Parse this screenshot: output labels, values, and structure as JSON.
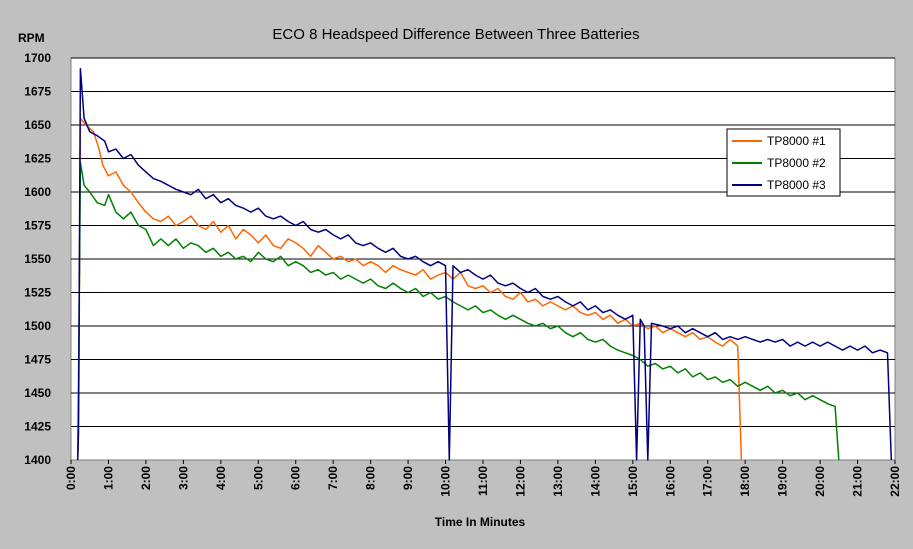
{
  "chart_data": {
    "type": "line",
    "title": "ECO 8 Headspeed Difference Between Three Batteries",
    "ylabel": "RPM",
    "xlabel": "Time In Minutes",
    "ylim": [
      1400,
      1700
    ],
    "xlim": [
      0,
      22
    ],
    "y_ticks": [
      1400,
      1425,
      1450,
      1475,
      1500,
      1525,
      1550,
      1575,
      1600,
      1625,
      1650,
      1675,
      1700
    ],
    "x_ticks": [
      "0:00",
      "1:00",
      "2:00",
      "3:00",
      "4:00",
      "5:00",
      "6:00",
      "7:00",
      "8:00",
      "9:00",
      "10:00",
      "11:00",
      "12:00",
      "13:00",
      "14:00",
      "15:00",
      "16:00",
      "17:00",
      "18:00",
      "19:00",
      "20:00",
      "21:00",
      "22:00"
    ],
    "grid": "horizontal",
    "legend_position": "right",
    "series": [
      {
        "name": "TP8000 #1",
        "color": "#ff6600",
        "points": [
          [
            0.18,
            1400
          ],
          [
            0.21,
            1462
          ],
          [
            0.25,
            1655
          ],
          [
            0.4,
            1650
          ],
          [
            0.6,
            1645
          ],
          [
            0.75,
            1632
          ],
          [
            0.85,
            1620
          ],
          [
            1.0,
            1612
          ],
          [
            1.2,
            1615
          ],
          [
            1.4,
            1605
          ],
          [
            1.6,
            1600
          ],
          [
            1.8,
            1592
          ],
          [
            2.0,
            1585
          ],
          [
            2.2,
            1580
          ],
          [
            2.4,
            1578
          ],
          [
            2.6,
            1582
          ],
          [
            2.8,
            1575
          ],
          [
            3.0,
            1578
          ],
          [
            3.2,
            1582
          ],
          [
            3.4,
            1575
          ],
          [
            3.6,
            1572
          ],
          [
            3.8,
            1578
          ],
          [
            4.0,
            1570
          ],
          [
            4.2,
            1575
          ],
          [
            4.4,
            1565
          ],
          [
            4.6,
            1572
          ],
          [
            4.8,
            1568
          ],
          [
            5.0,
            1562
          ],
          [
            5.2,
            1568
          ],
          [
            5.4,
            1560
          ],
          [
            5.6,
            1558
          ],
          [
            5.8,
            1565
          ],
          [
            6.0,
            1562
          ],
          [
            6.2,
            1558
          ],
          [
            6.4,
            1552
          ],
          [
            6.6,
            1560
          ],
          [
            6.8,
            1555
          ],
          [
            7.0,
            1550
          ],
          [
            7.2,
            1552
          ],
          [
            7.4,
            1548
          ],
          [
            7.6,
            1550
          ],
          [
            7.8,
            1545
          ],
          [
            8.0,
            1548
          ],
          [
            8.2,
            1545
          ],
          [
            8.4,
            1540
          ],
          [
            8.6,
            1545
          ],
          [
            8.8,
            1542
          ],
          [
            9.0,
            1540
          ],
          [
            9.2,
            1538
          ],
          [
            9.4,
            1542
          ],
          [
            9.6,
            1535
          ],
          [
            9.8,
            1538
          ],
          [
            10.0,
            1540
          ],
          [
            10.2,
            1535
          ],
          [
            10.4,
            1540
          ],
          [
            10.6,
            1530
          ],
          [
            10.8,
            1528
          ],
          [
            11.0,
            1530
          ],
          [
            11.2,
            1525
          ],
          [
            11.4,
            1528
          ],
          [
            11.6,
            1522
          ],
          [
            11.8,
            1520
          ],
          [
            12.0,
            1525
          ],
          [
            12.2,
            1518
          ],
          [
            12.4,
            1520
          ],
          [
            12.6,
            1515
          ],
          [
            12.8,
            1518
          ],
          [
            13.0,
            1515
          ],
          [
            13.2,
            1512
          ],
          [
            13.4,
            1515
          ],
          [
            13.6,
            1510
          ],
          [
            13.8,
            1508
          ],
          [
            14.0,
            1510
          ],
          [
            14.2,
            1505
          ],
          [
            14.4,
            1508
          ],
          [
            14.6,
            1502
          ],
          [
            14.8,
            1505
          ],
          [
            15.0,
            1500
          ],
          [
            15.2,
            1502
          ],
          [
            15.4,
            1498
          ],
          [
            15.6,
            1500
          ],
          [
            15.8,
            1495
          ],
          [
            16.0,
            1498
          ],
          [
            16.2,
            1495
          ],
          [
            16.4,
            1492
          ],
          [
            16.6,
            1495
          ],
          [
            16.8,
            1490
          ],
          [
            17.0,
            1492
          ],
          [
            17.2,
            1488
          ],
          [
            17.4,
            1485
          ],
          [
            17.6,
            1490
          ],
          [
            17.8,
            1485
          ],
          [
            17.9,
            1400
          ]
        ]
      },
      {
        "name": "TP8000 #2",
        "color": "#008000",
        "points": [
          [
            0.18,
            1400
          ],
          [
            0.2,
            1455
          ],
          [
            0.25,
            1622
          ],
          [
            0.35,
            1605
          ],
          [
            0.5,
            1600
          ],
          [
            0.7,
            1592
          ],
          [
            0.9,
            1590
          ],
          [
            1.0,
            1598
          ],
          [
            1.2,
            1585
          ],
          [
            1.4,
            1580
          ],
          [
            1.6,
            1585
          ],
          [
            1.8,
            1575
          ],
          [
            2.0,
            1572
          ],
          [
            2.2,
            1560
          ],
          [
            2.4,
            1565
          ],
          [
            2.6,
            1560
          ],
          [
            2.8,
            1565
          ],
          [
            3.0,
            1558
          ],
          [
            3.2,
            1562
          ],
          [
            3.4,
            1560
          ],
          [
            3.6,
            1555
          ],
          [
            3.8,
            1558
          ],
          [
            4.0,
            1552
          ],
          [
            4.2,
            1555
          ],
          [
            4.4,
            1550
          ],
          [
            4.6,
            1552
          ],
          [
            4.8,
            1548
          ],
          [
            5.0,
            1555
          ],
          [
            5.2,
            1550
          ],
          [
            5.4,
            1548
          ],
          [
            5.6,
            1552
          ],
          [
            5.8,
            1545
          ],
          [
            6.0,
            1548
          ],
          [
            6.2,
            1545
          ],
          [
            6.4,
            1540
          ],
          [
            6.6,
            1542
          ],
          [
            6.8,
            1538
          ],
          [
            7.0,
            1540
          ],
          [
            7.2,
            1535
          ],
          [
            7.4,
            1538
          ],
          [
            7.6,
            1535
          ],
          [
            7.8,
            1532
          ],
          [
            8.0,
            1535
          ],
          [
            8.2,
            1530
          ],
          [
            8.4,
            1528
          ],
          [
            8.6,
            1532
          ],
          [
            8.8,
            1528
          ],
          [
            9.0,
            1525
          ],
          [
            9.2,
            1528
          ],
          [
            9.4,
            1522
          ],
          [
            9.6,
            1525
          ],
          [
            9.8,
            1520
          ],
          [
            10.0,
            1522
          ],
          [
            10.2,
            1518
          ],
          [
            10.4,
            1515
          ],
          [
            10.6,
            1512
          ],
          [
            10.8,
            1515
          ],
          [
            11.0,
            1510
          ],
          [
            11.2,
            1512
          ],
          [
            11.4,
            1508
          ],
          [
            11.6,
            1505
          ],
          [
            11.8,
            1508
          ],
          [
            12.0,
            1505
          ],
          [
            12.2,
            1502
          ],
          [
            12.4,
            1500
          ],
          [
            12.6,
            1502
          ],
          [
            12.8,
            1498
          ],
          [
            13.0,
            1500
          ],
          [
            13.2,
            1495
          ],
          [
            13.4,
            1492
          ],
          [
            13.6,
            1495
          ],
          [
            13.8,
            1490
          ],
          [
            14.0,
            1488
          ],
          [
            14.2,
            1490
          ],
          [
            14.4,
            1485
          ],
          [
            14.6,
            1482
          ],
          [
            14.8,
            1480
          ],
          [
            15.0,
            1478
          ],
          [
            15.2,
            1475
          ],
          [
            15.4,
            1470
          ],
          [
            15.6,
            1472
          ],
          [
            15.8,
            1468
          ],
          [
            16.0,
            1470
          ],
          [
            16.2,
            1465
          ],
          [
            16.4,
            1468
          ],
          [
            16.6,
            1462
          ],
          [
            16.8,
            1465
          ],
          [
            17.0,
            1460
          ],
          [
            17.2,
            1462
          ],
          [
            17.4,
            1458
          ],
          [
            17.6,
            1460
          ],
          [
            17.8,
            1455
          ],
          [
            18.0,
            1458
          ],
          [
            18.2,
            1455
          ],
          [
            18.4,
            1452
          ],
          [
            18.6,
            1455
          ],
          [
            18.8,
            1450
          ],
          [
            19.0,
            1452
          ],
          [
            19.2,
            1448
          ],
          [
            19.4,
            1450
          ],
          [
            19.6,
            1445
          ],
          [
            19.8,
            1448
          ],
          [
            20.0,
            1445
          ],
          [
            20.2,
            1442
          ],
          [
            20.4,
            1440
          ],
          [
            20.5,
            1400
          ]
        ]
      },
      {
        "name": "TP8000 #3",
        "color": "#000080",
        "points": [
          [
            0.18,
            1400
          ],
          [
            0.2,
            1420
          ],
          [
            0.25,
            1692
          ],
          [
            0.35,
            1655
          ],
          [
            0.5,
            1645
          ],
          [
            0.7,
            1642
          ],
          [
            0.9,
            1638
          ],
          [
            1.0,
            1630
          ],
          [
            1.2,
            1632
          ],
          [
            1.4,
            1625
          ],
          [
            1.6,
            1628
          ],
          [
            1.8,
            1620
          ],
          [
            2.0,
            1615
          ],
          [
            2.2,
            1610
          ],
          [
            2.4,
            1608
          ],
          [
            2.6,
            1605
          ],
          [
            2.8,
            1602
          ],
          [
            3.0,
            1600
          ],
          [
            3.2,
            1598
          ],
          [
            3.4,
            1602
          ],
          [
            3.6,
            1595
          ],
          [
            3.8,
            1598
          ],
          [
            4.0,
            1592
          ],
          [
            4.2,
            1595
          ],
          [
            4.4,
            1590
          ],
          [
            4.6,
            1588
          ],
          [
            4.8,
            1585
          ],
          [
            5.0,
            1588
          ],
          [
            5.2,
            1582
          ],
          [
            5.4,
            1580
          ],
          [
            5.6,
            1582
          ],
          [
            5.8,
            1578
          ],
          [
            6.0,
            1575
          ],
          [
            6.2,
            1578
          ],
          [
            6.4,
            1572
          ],
          [
            6.6,
            1570
          ],
          [
            6.8,
            1572
          ],
          [
            7.0,
            1568
          ],
          [
            7.2,
            1565
          ],
          [
            7.4,
            1568
          ],
          [
            7.6,
            1562
          ],
          [
            7.8,
            1560
          ],
          [
            8.0,
            1562
          ],
          [
            8.2,
            1558
          ],
          [
            8.4,
            1555
          ],
          [
            8.6,
            1558
          ],
          [
            8.8,
            1552
          ],
          [
            9.0,
            1550
          ],
          [
            9.2,
            1552
          ],
          [
            9.4,
            1548
          ],
          [
            9.6,
            1545
          ],
          [
            9.8,
            1548
          ],
          [
            10.0,
            1545
          ],
          [
            10.1,
            1400
          ],
          [
            10.2,
            1545
          ],
          [
            10.4,
            1540
          ],
          [
            10.6,
            1542
          ],
          [
            10.8,
            1538
          ],
          [
            11.0,
            1535
          ],
          [
            11.2,
            1538
          ],
          [
            11.4,
            1532
          ],
          [
            11.6,
            1530
          ],
          [
            11.8,
            1532
          ],
          [
            12.0,
            1528
          ],
          [
            12.2,
            1525
          ],
          [
            12.4,
            1528
          ],
          [
            12.6,
            1522
          ],
          [
            12.8,
            1520
          ],
          [
            13.0,
            1522
          ],
          [
            13.2,
            1518
          ],
          [
            13.4,
            1515
          ],
          [
            13.6,
            1518
          ],
          [
            13.8,
            1512
          ],
          [
            14.0,
            1515
          ],
          [
            14.2,
            1510
          ],
          [
            14.4,
            1512
          ],
          [
            14.6,
            1508
          ],
          [
            14.8,
            1505
          ],
          [
            15.0,
            1508
          ],
          [
            15.1,
            1400
          ],
          [
            15.2,
            1505
          ],
          [
            15.3,
            1500
          ],
          [
            15.4,
            1400
          ],
          [
            15.5,
            1502
          ],
          [
            15.8,
            1500
          ],
          [
            16.0,
            1498
          ],
          [
            16.2,
            1500
          ],
          [
            16.4,
            1495
          ],
          [
            16.6,
            1498
          ],
          [
            16.8,
            1495
          ],
          [
            17.0,
            1492
          ],
          [
            17.2,
            1495
          ],
          [
            17.4,
            1490
          ],
          [
            17.6,
            1492
          ],
          [
            17.8,
            1490
          ],
          [
            18.0,
            1492
          ],
          [
            18.2,
            1490
          ],
          [
            18.4,
            1488
          ],
          [
            18.6,
            1490
          ],
          [
            18.8,
            1488
          ],
          [
            19.0,
            1490
          ],
          [
            19.2,
            1485
          ],
          [
            19.4,
            1488
          ],
          [
            19.6,
            1485
          ],
          [
            19.8,
            1488
          ],
          [
            20.0,
            1485
          ],
          [
            20.2,
            1488
          ],
          [
            20.4,
            1485
          ],
          [
            20.6,
            1482
          ],
          [
            20.8,
            1485
          ],
          [
            21.0,
            1482
          ],
          [
            21.2,
            1485
          ],
          [
            21.4,
            1480
          ],
          [
            21.6,
            1482
          ],
          [
            21.8,
            1480
          ],
          [
            21.9,
            1400
          ]
        ]
      }
    ]
  }
}
